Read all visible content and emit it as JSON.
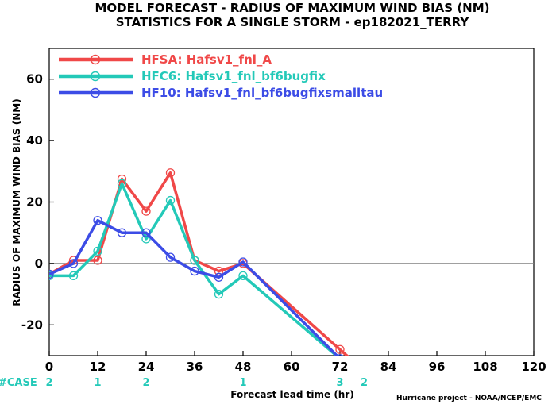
{
  "title_line1": "MODEL FORECAST - RADIUS OF MAXIMUM WIND BIAS (NM)",
  "title_line2": "STATISTICS FOR A SINGLE STORM - ep182021_TERRY",
  "credit": "Hurricane project - NOAA/NCEP/EMC",
  "case_label": "#CASE",
  "case_counts": [
    {
      "x": 0,
      "n": "2"
    },
    {
      "x": 12,
      "n": "1"
    },
    {
      "x": 24,
      "n": "2"
    },
    {
      "x": 48,
      "n": "1"
    },
    {
      "x": 72,
      "n": "3"
    },
    {
      "x": 78,
      "n": "2"
    }
  ],
  "colors": {
    "hfsa": "#f04848",
    "hfc6": "#23c9b8",
    "hf10": "#3c4ce6",
    "zero_line": "#808080"
  },
  "chart_data": {
    "type": "line",
    "xlabel": "Forecast lead time (hr)",
    "ylabel": "RADIUS OF MAXIMUM WIND BIAS (NM)",
    "xlim": [
      0,
      120
    ],
    "ylim": [
      -30,
      70
    ],
    "xticks": [
      0,
      12,
      24,
      36,
      48,
      60,
      72,
      84,
      96,
      108,
      120
    ],
    "yticks": [
      -20,
      0,
      20,
      40,
      60
    ],
    "legend_position": "top-left",
    "series": [
      {
        "name": "HFSA: Hafsv1_fnl_A",
        "color": "#f04848",
        "x": [
          0,
          6,
          12,
          18,
          24,
          30,
          36,
          42,
          48,
          72,
          78
        ],
        "y": [
          -3.5,
          1,
          1,
          27.5,
          17,
          29.5,
          1,
          -2.5,
          0,
          -28,
          -35
        ]
      },
      {
        "name": "HFC6: Hafsv1_fnl_bf6bugfix",
        "color": "#23c9b8",
        "x": [
          0,
          6,
          12,
          18,
          24,
          30,
          36,
          42,
          48,
          72
        ],
        "y": [
          -4,
          -4,
          4,
          26,
          8,
          20.5,
          1,
          -10,
          -4,
          -31
        ]
      },
      {
        "name": "HF10: Hafsv1_fnl_bf6bugfixsmalltau",
        "color": "#3c4ce6",
        "x": [
          0,
          6,
          12,
          18,
          24,
          30,
          36,
          42,
          48,
          72
        ],
        "y": [
          -3.5,
          0,
          14,
          10,
          10,
          2,
          -2.5,
          -4.5,
          0.5,
          -31
        ]
      }
    ]
  }
}
